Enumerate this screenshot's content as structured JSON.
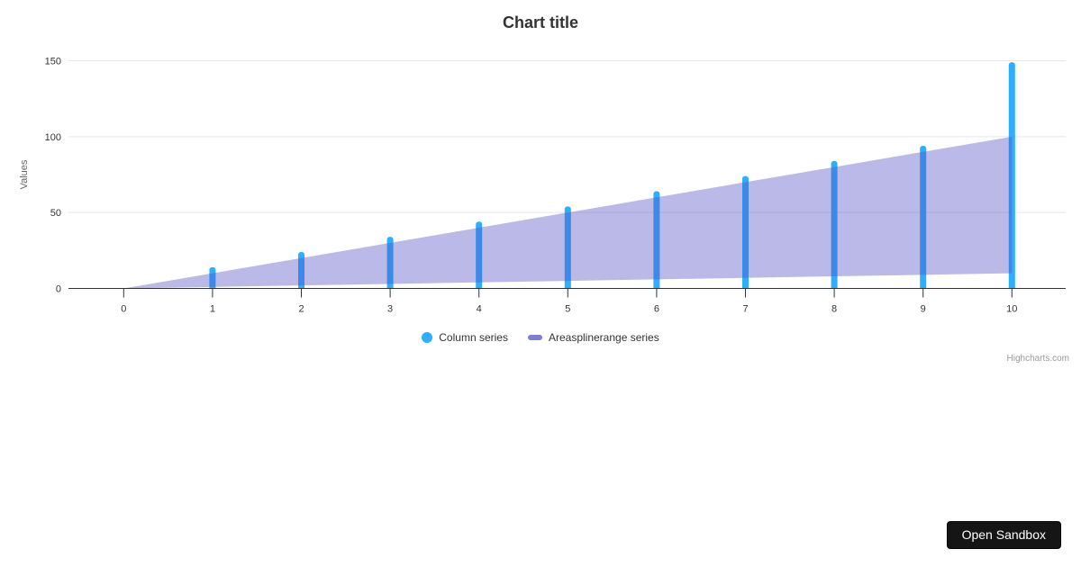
{
  "header": {
    "title": "Chart title"
  },
  "chart_data": {
    "type": "column+areasplinerange",
    "title": "Chart title",
    "xlabel": "",
    "ylabel": "Values",
    "ylim": [
      0,
      150
    ],
    "yticks": [
      0,
      50,
      100,
      150
    ],
    "xticks": [
      0,
      1,
      2,
      3,
      4,
      5,
      6,
      7,
      8,
      9,
      10
    ],
    "grid": "horizontal-only",
    "legend_position": "bottom-center",
    "series": [
      {
        "name": "Column series",
        "type": "column",
        "color": "#2caffe",
        "x": [
          1,
          2,
          3,
          4,
          5,
          6,
          7,
          8,
          9,
          10
        ],
        "values": [
          14,
          24,
          34,
          44,
          54,
          64,
          74,
          84,
          94,
          149
        ]
      },
      {
        "name": "Areasplinerange series",
        "type": "areasplinerange",
        "color": "#544fc5",
        "fill_opacity": 0.4,
        "legend_marker_color": "#817dd4",
        "x": [
          0,
          1,
          2,
          3,
          4,
          5,
          6,
          7,
          8,
          9,
          10
        ],
        "low": [
          0,
          1,
          2,
          3,
          4,
          5,
          6,
          7,
          8,
          9,
          10
        ],
        "high": [
          0,
          10,
          20,
          30,
          40,
          50,
          60,
          70,
          80,
          90,
          100
        ]
      }
    ],
    "credits": "Highcharts.com"
  },
  "colors": {
    "grid": "#e6e6e6",
    "axis_line": "#333333",
    "tick": "#333333",
    "axis_label": "#333333",
    "axis_title": "#666666",
    "credits_text": "#999999"
  },
  "sandbox_button": {
    "label": "Open Sandbox"
  }
}
